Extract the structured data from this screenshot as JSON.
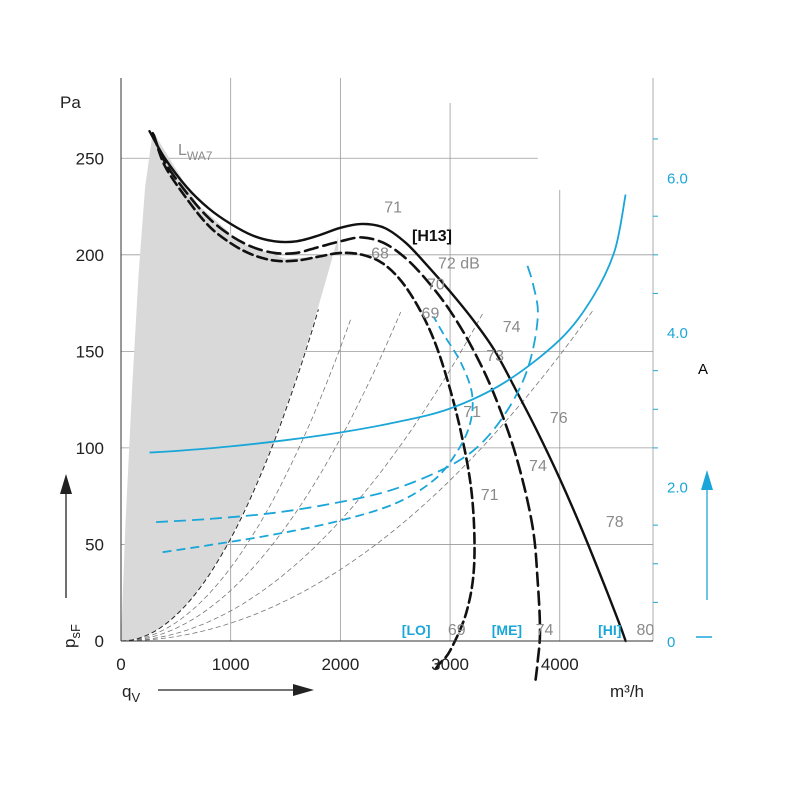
{
  "colors": {
    "blue": "#1aa6d8",
    "gray_fill": "#d9d9d9",
    "grid": "#9a9a9a",
    "dark": "#111111",
    "label_gray": "#8a8a8a"
  },
  "chart_data": {
    "type": "line",
    "xlabel": "q",
    "xlabel_sub": "V",
    "xunit": "m³/h",
    "ylabel": "p",
    "ylabel_sub": "sF",
    "yunit": "Pa",
    "y2unit": "A",
    "xlim": [
      0,
      4850
    ],
    "ylim": [
      0,
      275
    ],
    "y2lim": [
      0,
      6.875
    ],
    "x_ticks": [
      "0",
      "1000",
      "2000",
      "3000",
      "4000"
    ],
    "y_ticks": [
      "0",
      "50",
      "100",
      "150",
      "200",
      "250"
    ],
    "y2_ticks": [
      "0",
      "2.0",
      "4.0",
      "6.0"
    ],
    "y2_tick_values": [
      0,
      2.0,
      4.0,
      6.0
    ],
    "x_tick_values": [
      0,
      1000,
      2000,
      3000,
      4000
    ],
    "y_tick_values": [
      0,
      50,
      100,
      150,
      200,
      250
    ],
    "legend_label": "L",
    "legend_label_sub": "WA7",
    "model_label": "[H13]",
    "speed_labels": [
      "[LO]",
      "[ME]",
      "[HI]"
    ],
    "pressure_curves": [
      {
        "speed": "HI",
        "style": "solid",
        "x": [
          260,
          400,
          600,
          800,
          1000,
          1200,
          1400,
          1600,
          1800,
          2000,
          2200,
          2400,
          2600,
          2800,
          3000,
          3200,
          3400,
          3600,
          3800,
          4000,
          4200,
          4400,
          4550,
          4600
        ],
        "y": [
          264,
          250,
          235,
          224,
          216,
          210,
          207,
          207,
          210,
          214,
          216,
          214,
          206,
          194,
          181,
          167,
          151,
          130,
          108,
          84,
          58,
          30,
          8,
          0
        ]
      },
      {
        "speed": "ME",
        "style": "dashed",
        "x": [
          290,
          400,
          600,
          800,
          1000,
          1200,
          1400,
          1600,
          1800,
          2000,
          2200,
          2400,
          2600,
          2800,
          3000,
          3200,
          3400,
          3600,
          3750,
          3800,
          3820,
          3800,
          3780
        ],
        "y": [
          263,
          248,
          232,
          219,
          210,
          204,
          201,
          201,
          204,
          207,
          209,
          206,
          198,
          186,
          171,
          152,
          128,
          96,
          60,
          30,
          5,
          -10,
          -20
        ]
      },
      {
        "speed": "LO",
        "style": "dashed",
        "x": [
          300,
          400,
          600,
          800,
          1000,
          1200,
          1400,
          1600,
          1800,
          2000,
          2200,
          2400,
          2600,
          2800,
          2950,
          3100,
          3200,
          3220,
          3150,
          3000,
          2900,
          2850
        ],
        "y": [
          262,
          246,
          229,
          215,
          206,
          200,
          197,
          197,
          199,
          201,
          200,
          195,
          183,
          163,
          140,
          108,
          75,
          40,
          15,
          -5,
          -12,
          -16
        ]
      }
    ],
    "current_curves": [
      {
        "speed": "HI",
        "style": "solid",
        "x": [
          260,
          500,
          1000,
          1500,
          2000,
          2500,
          3000,
          3500,
          4000,
          4300,
          4500,
          4600
        ],
        "y": [
          2.44,
          2.46,
          2.52,
          2.6,
          2.7,
          2.83,
          3.01,
          3.35,
          3.9,
          4.45,
          5.05,
          5.78
        ]
      },
      {
        "speed": "ME",
        "style": "dashed",
        "x": [
          320,
          800,
          1400,
          2000,
          2500,
          3000,
          3300,
          3550,
          3720,
          3800,
          3760,
          3700
        ],
        "y": [
          1.54,
          1.58,
          1.66,
          1.8,
          1.97,
          2.27,
          2.58,
          3.05,
          3.58,
          4.2,
          4.6,
          4.88
        ]
      },
      {
        "speed": "LO",
        "style": "dashed",
        "x": [
          380,
          800,
          1400,
          2000,
          2500,
          2850,
          3050,
          3180,
          3200,
          3100,
          2950,
          2850
        ],
        "y": [
          1.15,
          1.24,
          1.38,
          1.56,
          1.78,
          2.08,
          2.42,
          2.8,
          3.2,
          3.6,
          3.95,
          4.2
        ]
      }
    ],
    "system_curves_k": [
      9.25e-06,
      1.56e-05,
      2.62e-05,
      3.8e-05,
      5.3e-05
    ],
    "shaded_region": {
      "left_x": [
        0,
        40,
        100,
        160,
        220,
        290
      ],
      "left_y": [
        0,
        60,
        130,
        190,
        235,
        264
      ],
      "right_k": 5.35e-05
    },
    "noise_labels": [
      {
        "text": "71",
        "x": 2400,
        "y": 222
      },
      {
        "text": "68",
        "x": 2280,
        "y": 198
      },
      {
        "text": "72 dB",
        "x": 2890,
        "y": 193
      },
      {
        "text": "70",
        "x": 2790,
        "y": 182
      },
      {
        "text": "69",
        "x": 2740,
        "y": 167
      },
      {
        "text": "74",
        "x": 3480,
        "y": 160
      },
      {
        "text": "73",
        "x": 3330,
        "y": 145
      },
      {
        "text": "71",
        "x": 3120,
        "y": 116
      },
      {
        "text": "76",
        "x": 3910,
        "y": 113
      },
      {
        "text": "74",
        "x": 3720,
        "y": 88
      },
      {
        "text": "71",
        "x": 3280,
        "y": 73
      },
      {
        "text": "78",
        "x": 4420,
        "y": 59
      },
      {
        "text": "69",
        "x": 2980,
        "y": 3
      },
      {
        "text": "74",
        "x": 3780,
        "y": 3
      },
      {
        "text": "80",
        "x": 4700,
        "y": 3
      }
    ]
  }
}
